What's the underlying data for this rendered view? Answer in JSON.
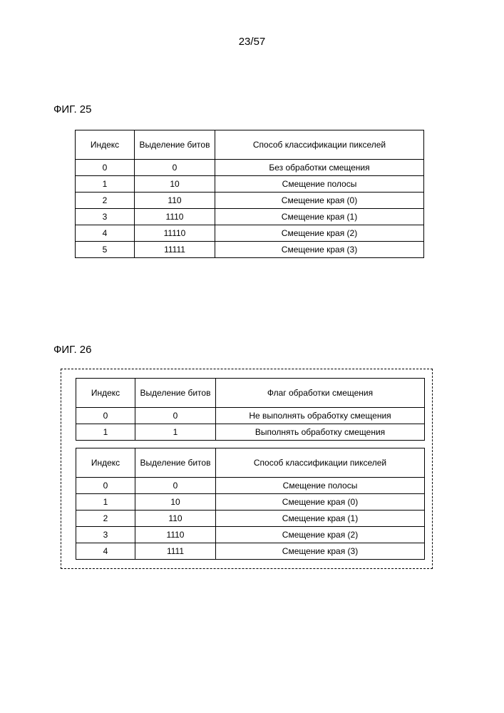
{
  "page_number": "23/57",
  "fig25": {
    "label": "ФИГ. 25",
    "columns": [
      "Индекс",
      "Выделение битов",
      "Способ классификации пикселей"
    ],
    "rows": [
      [
        "0",
        "0",
        "Без обработки смещения"
      ],
      [
        "1",
        "10",
        "Смещение полосы"
      ],
      [
        "2",
        "110",
        "Смещение края (0)"
      ],
      [
        "3",
        "1110",
        "Смещение края (1)"
      ],
      [
        "4",
        "11110",
        "Смещение края (2)"
      ],
      [
        "5",
        "11111",
        "Смещение края (3)"
      ]
    ]
  },
  "fig26": {
    "label": "ФИГ. 26",
    "table_a": {
      "columns": [
        "Индекс",
        "Выделение битов",
        "Флаг обработки смещения"
      ],
      "rows": [
        [
          "0",
          "0",
          "Не выполнять обработку смещения"
        ],
        [
          "1",
          "1",
          "Выполнять обработку смещения"
        ]
      ]
    },
    "table_b": {
      "columns": [
        "Индекс",
        "Выделение битов",
        "Способ классификации пикселей"
      ],
      "rows": [
        [
          "0",
          "0",
          "Смещение полосы"
        ],
        [
          "1",
          "10",
          "Смещение края (0)"
        ],
        [
          "2",
          "110",
          "Смещение края (1)"
        ],
        [
          "3",
          "1110",
          "Смещение края (2)"
        ],
        [
          "4",
          "1111",
          "Смещение края (3)"
        ]
      ]
    }
  }
}
